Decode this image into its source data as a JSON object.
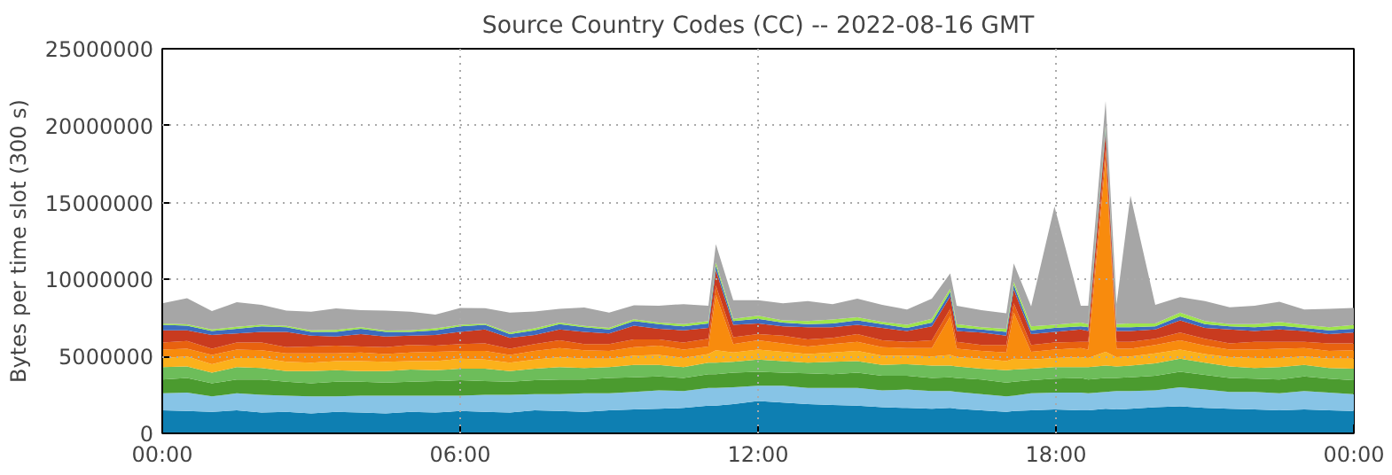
{
  "chart_data": {
    "type": "area",
    "stacked": true,
    "title": "Source Country Codes (CC) -- 2022-08-16 GMT",
    "ylabel": "Bytes per time slot (300 s)",
    "x": [
      0,
      0.5,
      1,
      1.5,
      2,
      2.5,
      3,
      3.5,
      4,
      4.5,
      5,
      5.5,
      6,
      6.5,
      7,
      7.5,
      8,
      8.5,
      9,
      9.5,
      10,
      10.5,
      11,
      11.15,
      11.5,
      12,
      12.5,
      13,
      13.5,
      14,
      14.5,
      15,
      15.5,
      15.87,
      16,
      16.5,
      17,
      17.15,
      17.5,
      17.97,
      18.5,
      18.65,
      19,
      19.22,
      19.5,
      20,
      20.5,
      21,
      21.5,
      22,
      22.5,
      23,
      23.5,
      24
    ],
    "xlim": [
      0,
      24
    ],
    "xticks": [
      {
        "value": 0,
        "label": "00:00"
      },
      {
        "value": 6,
        "label": "06:00"
      },
      {
        "value": 12,
        "label": "12:00"
      },
      {
        "value": 18,
        "label": "18:00"
      },
      {
        "value": 24,
        "label": "00:00"
      }
    ],
    "ylim": [
      0,
      25000000
    ],
    "yticks": [
      0,
      5000000,
      10000000,
      15000000,
      20000000,
      25000000
    ],
    "grid": true,
    "series": [
      {
        "color": "#0e7fb2",
        "values": [
          1500000,
          1450000,
          1400000,
          1500000,
          1350000,
          1400000,
          1300000,
          1400000,
          1350000,
          1300000,
          1400000,
          1350000,
          1450000,
          1400000,
          1350000,
          1500000,
          1450000,
          1400000,
          1500000,
          1550000,
          1600000,
          1650000,
          1800000,
          1800000,
          1900000,
          2100000,
          2000000,
          1900000,
          1850000,
          1800000,
          1700000,
          1650000,
          1600000,
          1650000,
          1600000,
          1500000,
          1400000,
          1450000,
          1500000,
          1550000,
          1500000,
          1500000,
          1600000,
          1550000,
          1600000,
          1700000,
          1750000,
          1650000,
          1600000,
          1550000,
          1500000,
          1550000,
          1500000,
          1450000
        ]
      },
      {
        "color": "#87c4e6",
        "values": [
          1100000,
          1200000,
          1000000,
          1100000,
          1150000,
          1050000,
          1100000,
          1000000,
          1100000,
          1150000,
          1050000,
          1100000,
          1000000,
          1100000,
          1150000,
          1050000,
          1100000,
          1200000,
          1100000,
          1150000,
          1200000,
          1100000,
          1150000,
          1150000,
          1100000,
          1000000,
          1100000,
          1050000,
          1100000,
          1150000,
          1100000,
          1200000,
          1150000,
          1100000,
          1100000,
          1050000,
          1000000,
          1000000,
          1100000,
          1100000,
          1150000,
          1100000,
          1100000,
          1200000,
          1150000,
          1100000,
          1250000,
          1200000,
          1100000,
          1150000,
          1100000,
          1200000,
          1150000,
          1100000
        ]
      },
      {
        "color": "#4b9b2f",
        "values": [
          900000,
          950000,
          850000,
          900000,
          1000000,
          900000,
          850000,
          950000,
          900000,
          850000,
          900000,
          950000,
          1000000,
          900000,
          850000,
          900000,
          950000,
          900000,
          1000000,
          950000,
          900000,
          850000,
          900000,
          900000,
          950000,
          900000,
          850000,
          950000,
          900000,
          1000000,
          950000,
          900000,
          850000,
          900000,
          900000,
          950000,
          900000,
          900000,
          850000,
          900000,
          950000,
          900000,
          900000,
          850000,
          900000,
          950000,
          1000000,
          950000,
          900000,
          850000,
          900000,
          950000,
          900000,
          900000
        ]
      },
      {
        "color": "#6dbd5a",
        "values": [
          800000,
          750000,
          700000,
          800000,
          750000,
          700000,
          800000,
          750000,
          700000,
          750000,
          800000,
          700000,
          750000,
          800000,
          700000,
          750000,
          800000,
          750000,
          700000,
          800000,
          750000,
          700000,
          750000,
          750000,
          700000,
          800000,
          750000,
          700000,
          800000,
          750000,
          700000,
          750000,
          800000,
          750000,
          750000,
          700000,
          800000,
          800000,
          750000,
          750000,
          700000,
          800000,
          800000,
          750000,
          750000,
          800000,
          850000,
          800000,
          750000,
          700000,
          800000,
          750000,
          700000,
          750000
        ]
      },
      {
        "color": "#fbb11b",
        "values": [
          600000,
          650000,
          550000,
          600000,
          650000,
          600000,
          550000,
          600000,
          650000,
          600000,
          550000,
          600000,
          650000,
          600000,
          550000,
          600000,
          650000,
          600000,
          550000,
          600000,
          650000,
          600000,
          550000,
          800000,
          600000,
          650000,
          600000,
          550000,
          600000,
          650000,
          600000,
          550000,
          600000,
          700000,
          600000,
          650000,
          600000,
          700000,
          600000,
          600000,
          650000,
          600000,
          900000,
          600000,
          600000,
          650000,
          600000,
          550000,
          600000,
          650000,
          600000,
          550000,
          600000,
          650000
        ]
      },
      {
        "color": "#f88b0d",
        "values": [
          550000,
          500000,
          600000,
          550000,
          500000,
          550000,
          600000,
          500000,
          550000,
          500000,
          550000,
          600000,
          500000,
          550000,
          500000,
          550000,
          600000,
          550000,
          500000,
          550000,
          600000,
          550000,
          500000,
          3600000,
          550000,
          600000,
          550000,
          500000,
          550000,
          600000,
          550000,
          500000,
          550000,
          2500000,
          550000,
          500000,
          550000,
          3000000,
          500000,
          550000,
          600000,
          550000,
          12500000,
          550000,
          500000,
          550000,
          600000,
          550000,
          500000,
          550000,
          600000,
          550000,
          500000,
          550000
        ]
      },
      {
        "color": "#e8620f",
        "values": [
          450000,
          500000,
          400000,
          450000,
          500000,
          400000,
          450000,
          500000,
          400000,
          450000,
          500000,
          400000,
          450000,
          500000,
          400000,
          450000,
          500000,
          400000,
          450000,
          500000,
          400000,
          450000,
          500000,
          600000,
          450000,
          400000,
          500000,
          450000,
          400000,
          500000,
          450000,
          400000,
          500000,
          500000,
          450000,
          400000,
          500000,
          600000,
          450000,
          450000,
          400000,
          500000,
          700000,
          450000,
          450000,
          400000,
          500000,
          450000,
          400000,
          500000,
          450000,
          400000,
          500000,
          450000
        ]
      },
      {
        "color": "#c93b1f",
        "values": [
          800000,
          700000,
          900000,
          600000,
          700000,
          1000000,
          700000,
          600000,
          800000,
          700000,
          600000,
          700000,
          800000,
          900000,
          700000,
          600000,
          700000,
          800000,
          700000,
          900000,
          700000,
          800000,
          700000,
          1000000,
          800000,
          700000,
          600000,
          800000,
          700000,
          600000,
          800000,
          700000,
          900000,
          800000,
          700000,
          800000,
          600000,
          900000,
          700000,
          700000,
          800000,
          700000,
          1000000,
          700000,
          700000,
          600000,
          800000,
          700000,
          900000,
          700000,
          800000,
          700000,
          600000,
          700000
        ]
      },
      {
        "color": "#3d6cbe",
        "values": [
          350000,
          300000,
          250000,
          300000,
          350000,
          300000,
          250000,
          300000,
          350000,
          300000,
          250000,
          300000,
          350000,
          300000,
          250000,
          300000,
          350000,
          300000,
          250000,
          300000,
          300000,
          250000,
          300000,
          300000,
          250000,
          300000,
          250000,
          200000,
          250000,
          300000,
          250000,
          200000,
          250000,
          300000,
          250000,
          200000,
          250000,
          300000,
          250000,
          250000,
          200000,
          250000,
          300000,
          250000,
          250000,
          200000,
          250000,
          250000,
          200000,
          250000,
          250000,
          200000,
          250000,
          250000
        ]
      },
      {
        "color": "#9ee54b",
        "values": [
          100000,
          80000,
          100000,
          120000,
          100000,
          80000,
          100000,
          120000,
          100000,
          80000,
          100000,
          120000,
          100000,
          80000,
          100000,
          120000,
          100000,
          80000,
          100000,
          120000,
          100000,
          150000,
          150000,
          200000,
          150000,
          200000,
          150000,
          200000,
          250000,
          200000,
          150000,
          200000,
          250000,
          200000,
          200000,
          150000,
          200000,
          200000,
          250000,
          200000,
          250000,
          200000,
          200000,
          200000,
          250000,
          200000,
          250000,
          200000,
          150000,
          200000,
          250000,
          200000,
          200000,
          250000
        ]
      },
      {
        "color": "#a6a6a6",
        "values": [
          1300000,
          1700000,
          1200000,
          1600000,
          1300000,
          1000000,
          1200000,
          1400000,
          1100000,
          1300000,
          1200000,
          900000,
          1100000,
          1000000,
          1300000,
          1100000,
          900000,
          1200000,
          1000000,
          900000,
          1100000,
          1300000,
          1000000,
          1200000,
          1200000,
          1000000,
          1100000,
          1300000,
          1000000,
          1200000,
          1100000,
          1000000,
          1300000,
          1000000,
          1200000,
          1100000,
          1000000,
          1200000,
          1300000,
          7700000,
          1100000,
          1200000,
          1600000,
          1300000,
          8300000,
          1200000,
          1000000,
          1300000,
          1100000,
          1200000,
          1300000,
          1000000,
          1200000,
          1100000
        ]
      }
    ]
  }
}
